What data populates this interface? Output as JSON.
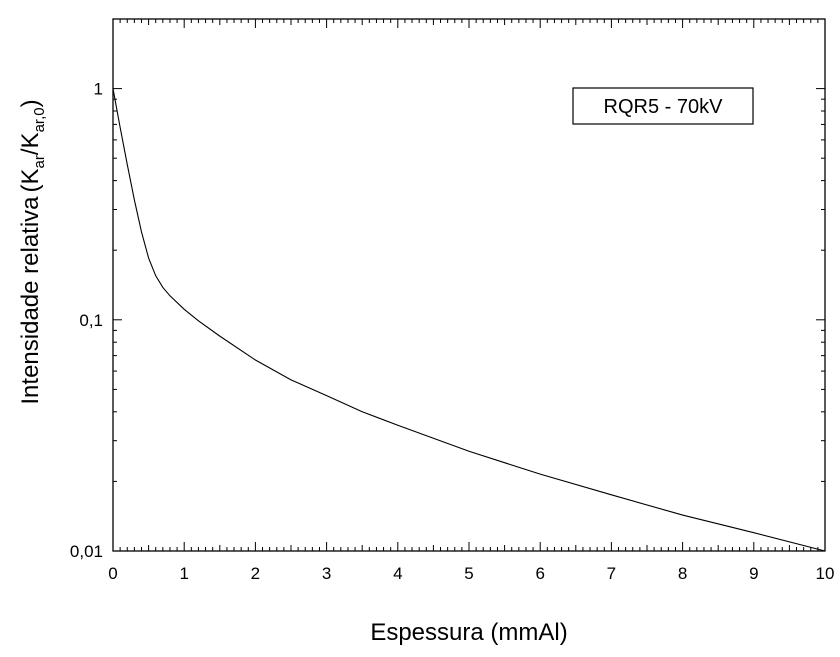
{
  "chart_data": {
    "type": "line",
    "xlabel": "Espessura (mmAl)",
    "ylabel": {
      "main": "Intensidade relativa",
      "open_paren": "(",
      "k1": "K",
      "sub1": "ar",
      "slash": "/",
      "k2": "K",
      "sub2": "ar,0",
      "close_paren": ")"
    },
    "xlim": [
      0,
      10
    ],
    "ylim": [
      0.01,
      2
    ],
    "yscale": "log",
    "x_ticks": [
      "0",
      "1",
      "2",
      "3",
      "4",
      "5",
      "6",
      "7",
      "8",
      "9",
      "10"
    ],
    "y_ticks": [
      {
        "value": 1,
        "label": "1"
      },
      {
        "value": 0.1,
        "label": "0,1"
      },
      {
        "value": 0.01,
        "label": "0,01"
      }
    ],
    "grid": false,
    "legend": {
      "label": "RQR5 - 70kV",
      "placement": "top-right"
    },
    "series": [
      {
        "x": [
          0,
          0.1,
          0.2,
          0.3,
          0.4,
          0.5,
          0.6,
          0.7,
          0.8,
          1.0,
          1.2,
          1.5,
          2,
          2.5,
          3,
          3.5,
          4,
          5,
          6,
          7,
          8,
          9,
          10
        ],
        "y": [
          1.0,
          0.68,
          0.47,
          0.33,
          0.24,
          0.185,
          0.155,
          0.138,
          0.127,
          0.111,
          0.099,
          0.085,
          0.067,
          0.055,
          0.047,
          0.04,
          0.035,
          0.027,
          0.0215,
          0.0175,
          0.0143,
          0.012,
          0.01
        ]
      }
    ]
  }
}
